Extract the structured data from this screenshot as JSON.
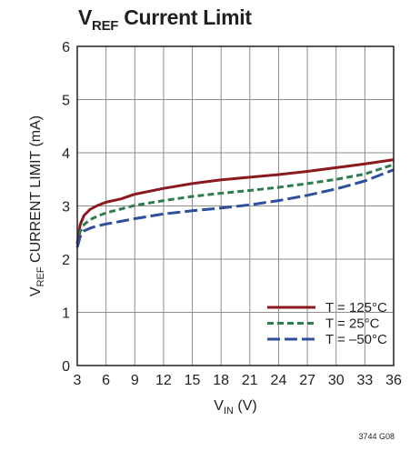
{
  "chart_data": {
    "type": "line",
    "title_main": "V",
    "title_sub": "REF",
    "title_rest": " Current Limit",
    "xlabel_main": "V",
    "xlabel_sub": "IN",
    "xlabel_rest": " (V)",
    "ylabel_main": "V",
    "ylabel_sub": "REF",
    "ylabel_rest": " CURRENT LIMIT (mA)",
    "xlim": [
      3,
      36
    ],
    "ylim": [
      0,
      6
    ],
    "xticks": [
      3,
      6,
      9,
      12,
      15,
      18,
      21,
      24,
      27,
      30,
      33,
      36
    ],
    "yticks": [
      0,
      1,
      2,
      3,
      4,
      5,
      6
    ],
    "grid": true,
    "legend_position": "bottom-right",
    "footnote": "3744 G08",
    "series": [
      {
        "name": "T = 125°C",
        "color": "#8b1a1f",
        "dash": "solid",
        "x": [
          3.0,
          3.3,
          3.7,
          4.3,
          5.0,
          6.0,
          7.5,
          9.0,
          12,
          15,
          18,
          21,
          24,
          27,
          30,
          33,
          36
        ],
        "y": [
          2.3,
          2.65,
          2.82,
          2.93,
          3.0,
          3.07,
          3.13,
          3.22,
          3.33,
          3.42,
          3.49,
          3.54,
          3.59,
          3.65,
          3.72,
          3.79,
          3.87
        ]
      },
      {
        "name": "T = 25°C",
        "color": "#2e7d4f",
        "dash": "dashed",
        "x": [
          3.0,
          3.3,
          3.7,
          4.3,
          5.0,
          6.0,
          7.5,
          9.0,
          12,
          15,
          18,
          21,
          24,
          27,
          30,
          33,
          36
        ],
        "y": [
          2.27,
          2.52,
          2.65,
          2.74,
          2.8,
          2.87,
          2.94,
          3.01,
          3.1,
          3.18,
          3.24,
          3.29,
          3.35,
          3.42,
          3.5,
          3.6,
          3.78
        ]
      },
      {
        "name": "T = –50°C",
        "color": "#2d4f9e",
        "dash": "longdash",
        "x": [
          3.0,
          3.3,
          3.7,
          4.3,
          5.0,
          6.0,
          7.5,
          9.0,
          12,
          15,
          18,
          21,
          24,
          27,
          30,
          33,
          36
        ],
        "y": [
          2.22,
          2.42,
          2.53,
          2.58,
          2.62,
          2.66,
          2.71,
          2.76,
          2.85,
          2.91,
          2.96,
          3.02,
          3.1,
          3.2,
          3.32,
          3.47,
          3.68
        ]
      }
    ]
  }
}
